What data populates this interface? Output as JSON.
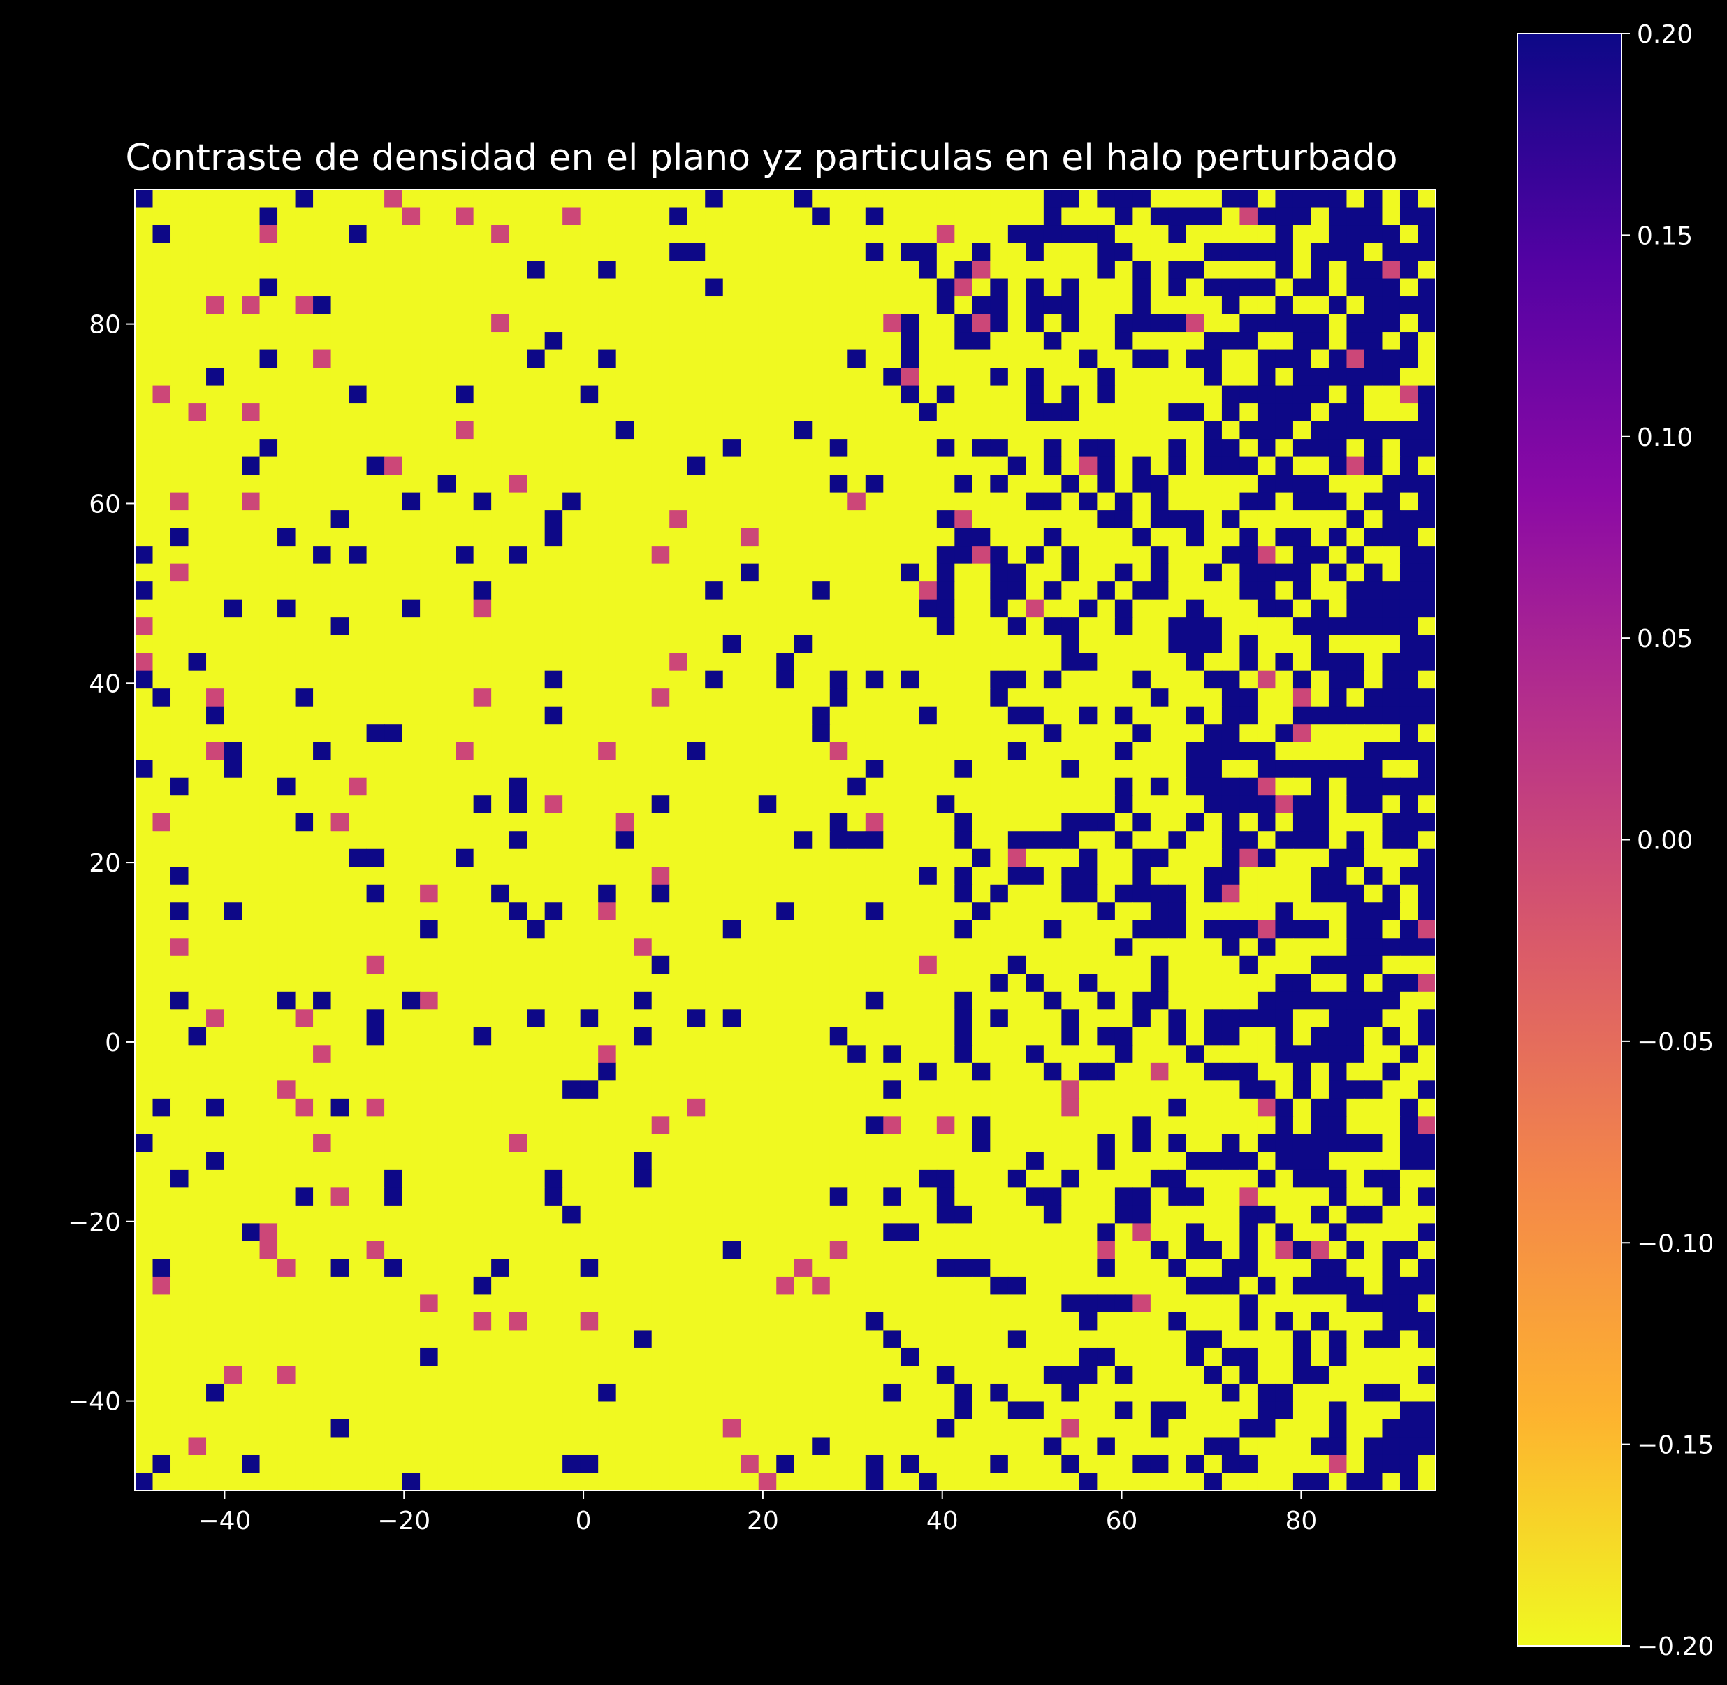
{
  "chart_data": {
    "type": "heatmap",
    "title": "Contraste de densidad en el plano yz particulas en el halo perturbado",
    "xlabel": "",
    "ylabel": "",
    "xlim": [
      -50,
      95
    ],
    "ylim": [
      -50,
      95
    ],
    "x_ticks": [
      "−40",
      "−20",
      "0",
      "20",
      "40",
      "60",
      "80"
    ],
    "y_ticks": [
      "−40",
      "−20",
      "0",
      "20",
      "40",
      "60",
      "80"
    ],
    "grid": false,
    "colormap": "plasma",
    "colorbar": {
      "vmin": -0.2,
      "vmax": 0.2,
      "ticks": [
        "−0.20",
        "−0.15",
        "−0.10",
        "−0.05",
        "0.00",
        "0.05",
        "0.10",
        "0.15",
        "0.20"
      ],
      "colors": [
        "#f0f921",
        "#fdb32f",
        "#f48849",
        "#db5c68",
        "#b83289",
        "#8b0aa5",
        "#5302a3",
        "#0d0887"
      ]
    },
    "cell_size": 2,
    "grid_cells": [
      73,
      73
    ],
    "levels": {
      "low": -0.2,
      "mid": 0.0,
      "high": 0.2
    },
    "level_colors": {
      "low": "#f0f921",
      "mid": "#cc4778",
      "high": "#0d0887"
    },
    "pattern": "mostly -0.20 (yellow) with scattered +0.20 (dark blue) cells whose density increases toward the upper-right (large x and y); sparse 0.00 (magenta) cells throughout"
  }
}
